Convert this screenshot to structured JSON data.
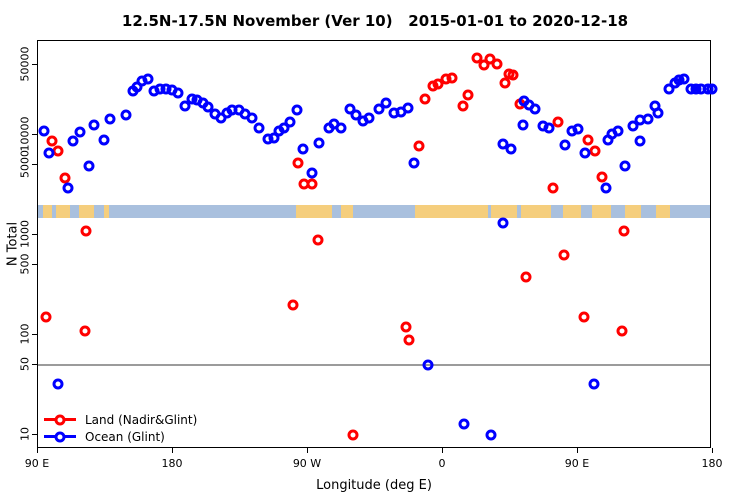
{
  "chart_data": {
    "type": "scatter",
    "title": "12.5N-17.5N November (Ver 10)   2015-01-01 to 2020-12-18",
    "xlabel": "Longitude (deg E)",
    "ylabel": "N Total",
    "x_axis": {
      "tick_degrees": [
        90,
        180,
        270,
        360,
        450,
        540
      ],
      "tick_labels": [
        "90 E",
        "180",
        "90 W",
        "0",
        "90 E",
        "180"
      ],
      "range_deg": [
        90,
        540
      ],
      "note": "longitude wraps eastward from 90E around the globe to 180"
    },
    "y_axis": {
      "scale": "log",
      "tick_values": [
        50000,
        10000,
        5000,
        1000,
        500,
        100,
        50,
        10
      ],
      "tick_labels": [
        "50000",
        "10000",
        "5000",
        "1000",
        "500",
        "100",
        "50",
        "10"
      ],
      "range": [
        7,
        87000
      ]
    },
    "grid": false,
    "reference_line_y": 50,
    "reference_line_color": "#9b9b9b",
    "map_strip": {
      "y_value_range": [
        1480,
        2000
      ],
      "ocean_color": "#a9c0de",
      "land_color": "#f5ce7d",
      "land_patches_deg": [
        [
          93,
          99
        ],
        [
          102,
          111
        ],
        [
          117,
          127
        ],
        [
          134,
          137
        ],
        [
          262,
          286
        ],
        [
          292,
          300
        ],
        [
          341,
          390
        ],
        [
          392,
          409
        ],
        [
          412,
          432
        ],
        [
          440,
          452
        ],
        [
          459,
          472
        ],
        [
          481,
          492
        ],
        [
          502,
          511
        ]
      ]
    },
    "legend_position": "bottom-left",
    "series": [
      {
        "name": "Land (Nadir&Glint)",
        "color": "#ff0000",
        "marker": "open-circle",
        "points": [
          [
            95.3,
            150
          ],
          [
            99.3,
            8700
          ],
          [
            103.3,
            6900
          ],
          [
            108,
            3700
          ],
          [
            121.3,
            110
          ],
          [
            122,
            1100
          ],
          [
            260,
            200
          ],
          [
            263.3,
            5250
          ],
          [
            267.3,
            3240
          ],
          [
            272.7,
            3240
          ],
          [
            276.7,
            890
          ],
          [
            300,
            10
          ],
          [
            335.3,
            120
          ],
          [
            337.3,
            89
          ],
          [
            344,
            7800
          ],
          [
            348,
            23000
          ],
          [
            353.3,
            31000
          ],
          [
            356.7,
            32000
          ],
          [
            362,
            36000
          ],
          [
            366,
            37000
          ],
          [
            373.3,
            19500
          ],
          [
            376.7,
            25000
          ],
          [
            382.7,
            59000
          ],
          [
            387.3,
            50000
          ],
          [
            391.3,
            57000
          ],
          [
            396,
            51000
          ],
          [
            401.3,
            33000
          ],
          [
            404,
            41000
          ],
          [
            406.7,
            40000
          ],
          [
            411.3,
            20500
          ],
          [
            415.3,
            380
          ],
          [
            433.3,
            2950
          ],
          [
            436.7,
            13500
          ],
          [
            440.7,
            630
          ],
          [
            454,
            150
          ],
          [
            456.7,
            8900
          ],
          [
            461.3,
            6900
          ],
          [
            466,
            3800
          ],
          [
            479.3,
            110
          ],
          [
            480.7,
            1100
          ]
        ]
      },
      {
        "name": "Ocean (Glint)",
        "color": "#0000ff",
        "marker": "open-circle",
        "points": [
          [
            94,
            11000
          ],
          [
            97.3,
            6600
          ],
          [
            103.3,
            32
          ],
          [
            110,
            2950
          ],
          [
            113.3,
            8700
          ],
          [
            118,
            10700
          ],
          [
            124,
            4900
          ],
          [
            127.3,
            12600
          ],
          [
            134,
            8900
          ],
          [
            138,
            14500
          ],
          [
            148.7,
            15800
          ],
          [
            153.3,
            27500
          ],
          [
            156,
            30000
          ],
          [
            159.3,
            34700
          ],
          [
            163.3,
            36300
          ],
          [
            167.3,
            27500
          ],
          [
            171.3,
            28800
          ],
          [
            175.3,
            28800
          ],
          [
            179.3,
            28200
          ],
          [
            183.3,
            26300
          ],
          [
            188,
            19500
          ],
          [
            192.7,
            22900
          ],
          [
            196,
            22400
          ],
          [
            200,
            20900
          ],
          [
            203.3,
            19000
          ],
          [
            208,
            16200
          ],
          [
            212,
            14800
          ],
          [
            216,
            16600
          ],
          [
            219.3,
            17800
          ],
          [
            223.7,
            17800
          ],
          [
            228,
            16200
          ],
          [
            232.7,
            14800
          ],
          [
            237.3,
            11800
          ],
          [
            243.3,
            9100
          ],
          [
            247.3,
            9300
          ],
          [
            250.7,
            11000
          ],
          [
            254,
            11800
          ],
          [
            258,
            13500
          ],
          [
            262.7,
            17800
          ],
          [
            266.7,
            7240
          ],
          [
            272.7,
            4170
          ],
          [
            277.3,
            8300
          ],
          [
            284,
            11800
          ],
          [
            287.3,
            12900
          ],
          [
            292,
            11800
          ],
          [
            298,
            18000
          ],
          [
            302,
            15800
          ],
          [
            306.7,
            13800
          ],
          [
            310.7,
            14800
          ],
          [
            317.3,
            18200
          ],
          [
            322,
            20900
          ],
          [
            327.3,
            16600
          ],
          [
            332,
            17000
          ],
          [
            336.7,
            18600
          ],
          [
            340.7,
            5250
          ],
          [
            350,
            50
          ],
          [
            374.2,
            13
          ],
          [
            392,
            10
          ],
          [
            400,
            8100
          ],
          [
            400,
            1320
          ],
          [
            405.3,
            7240
          ],
          [
            413.3,
            12600
          ],
          [
            414,
            21900
          ],
          [
            417.3,
            20000
          ],
          [
            421.3,
            18200
          ],
          [
            426.7,
            12300
          ],
          [
            430.7,
            11800
          ],
          [
            441.3,
            7900
          ],
          [
            446,
            11000
          ],
          [
            450,
            11500
          ],
          [
            454.7,
            6600
          ],
          [
            460.7,
            32
          ],
          [
            468.7,
            2950
          ],
          [
            470,
            8900
          ],
          [
            472.7,
            10200
          ],
          [
            476.7,
            11000
          ],
          [
            481.3,
            4900
          ],
          [
            486.7,
            12300
          ],
          [
            491.3,
            14100
          ],
          [
            491.3,
            8700
          ],
          [
            496.7,
            14500
          ],
          [
            501.3,
            19500
          ],
          [
            503.3,
            16600
          ],
          [
            510.7,
            28800
          ],
          [
            514.7,
            33000
          ],
          [
            517.3,
            35500
          ],
          [
            520.7,
            36300
          ],
          [
            525.3,
            28800
          ],
          [
            528.7,
            28800
          ],
          [
            532,
            28800
          ],
          [
            536.7,
            28800
          ],
          [
            539.3,
            28800
          ]
        ]
      }
    ]
  }
}
